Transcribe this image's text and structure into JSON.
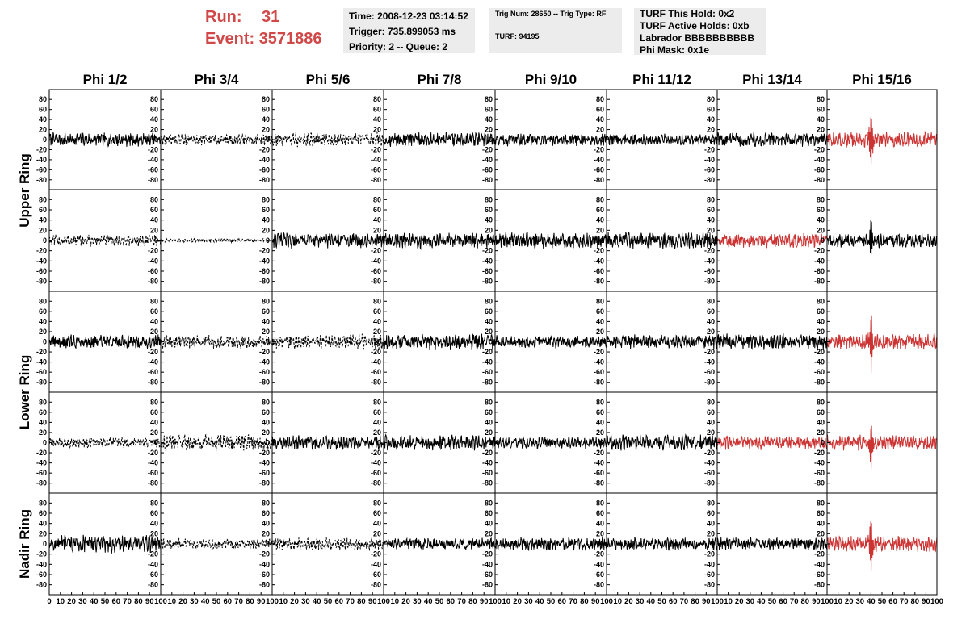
{
  "header": {
    "run_label": "Run:",
    "run_value": "31",
    "event_label": "Event:",
    "event_value": "3571886",
    "time_panel": {
      "time": "Time: 2008-12-23 03:14:52",
      "trigger": "Trigger: 735.899053 ms",
      "priority": "Priority: 2 -- Queue: 2"
    },
    "trig_panel": {
      "trig": "Trig Num: 28650 -- Trig Type: RF",
      "turf": "TURF: 94195"
    },
    "turf_panel": {
      "this_hold": "TURF This Hold: 0x2",
      "active_holds": "TURF Active Holds: 0xb",
      "labrador": "Labrador BBBBBBBBBB",
      "phi_mask": "Phi Mask: 0x1e"
    }
  },
  "chart_data": {
    "type": "line",
    "grid": false,
    "columns": [
      "Phi 1/2",
      "Phi 3/4",
      "Phi 5/6",
      "Phi 7/8",
      "Phi 9/10",
      "Phi 11/12",
      "Phi 13/14",
      "Phi 15/16"
    ],
    "row_groups": [
      {
        "label": "Upper Ring",
        "rows": [
          0,
          1
        ]
      },
      {
        "label": "Lower Ring",
        "rows": [
          2,
          3
        ]
      },
      {
        "label": "Nadir Ring",
        "rows": [
          4
        ]
      }
    ],
    "xlim": [
      0,
      100
    ],
    "ylim": [
      -90,
      90
    ],
    "x_ticks_first": [
      "0",
      "10",
      "20",
      "30",
      "40",
      "50",
      "60",
      "70",
      "80",
      "90",
      "100"
    ],
    "x_ticks_other": [
      "10",
      "20",
      "30",
      "40",
      "50",
      "60",
      "70",
      "80",
      "90",
      "100"
    ],
    "y_ticks": [
      "80",
      "60",
      "40",
      "20",
      "0",
      "-20",
      "-40",
      "-60",
      "-80"
    ],
    "colors": {
      "normal": "#000000",
      "triggered": "#cc3333",
      "header_red": "#d04848"
    },
    "waveform_samples": 260,
    "cells": [
      [
        {
          "amp": 11,
          "style": "solid",
          "color": "black"
        },
        {
          "amp": 9,
          "style": "dashed",
          "color": "black"
        },
        {
          "amp": 11,
          "style": "dashed",
          "color": "black"
        },
        {
          "amp": 11,
          "style": "solid",
          "color": "black"
        },
        {
          "amp": 10,
          "style": "solid",
          "color": "black"
        },
        {
          "amp": 9,
          "style": "solid",
          "color": "black"
        },
        {
          "amp": 11,
          "style": "solid",
          "color": "black"
        },
        {
          "amp": 12,
          "style": "solid",
          "color": "red",
          "spike": 40,
          "spike_amp": 74
        }
      ],
      [
        {
          "amp": 9,
          "style": "dashed",
          "color": "black"
        },
        {
          "amp": 3,
          "style": "dashed",
          "color": "black"
        },
        {
          "amp": 12,
          "style": "solid",
          "color": "black"
        },
        {
          "amp": 12,
          "style": "solid",
          "color": "black"
        },
        {
          "amp": 12,
          "style": "solid",
          "color": "black"
        },
        {
          "amp": 13,
          "style": "solid",
          "color": "black"
        },
        {
          "amp": 11,
          "style": "solid",
          "color": "red"
        },
        {
          "amp": 11,
          "style": "solid",
          "color": "black",
          "spike": 40,
          "spike_amp": 52
        }
      ],
      [
        {
          "amp": 11,
          "style": "solid",
          "color": "black"
        },
        {
          "amp": 10,
          "style": "dashed",
          "color": "black"
        },
        {
          "amp": 12,
          "style": "dashed",
          "color": "black"
        },
        {
          "amp": 13,
          "style": "solid",
          "color": "black"
        },
        {
          "amp": 10,
          "style": "solid",
          "color": "black"
        },
        {
          "amp": 11,
          "style": "solid",
          "color": "black"
        },
        {
          "amp": 12,
          "style": "solid",
          "color": "black"
        },
        {
          "amp": 12,
          "style": "solid",
          "color": "red",
          "spike": 40,
          "spike_amp": 76
        }
      ],
      [
        {
          "amp": 8,
          "style": "dashed",
          "color": "black"
        },
        {
          "amp": 13,
          "style": "dashed",
          "color": "black"
        },
        {
          "amp": 11,
          "style": "solid",
          "color": "black"
        },
        {
          "amp": 12,
          "style": "solid",
          "color": "black"
        },
        {
          "amp": 9,
          "style": "solid",
          "color": "black"
        },
        {
          "amp": 12,
          "style": "solid",
          "color": "black"
        },
        {
          "amp": 11,
          "style": "solid",
          "color": "red"
        },
        {
          "amp": 12,
          "style": "solid",
          "color": "red",
          "spike": 40,
          "spike_amp": 70
        }
      ],
      [
        {
          "amp": 14,
          "style": "solid",
          "color": "black"
        },
        {
          "amp": 8,
          "style": "dashed",
          "color": "black"
        },
        {
          "amp": 10,
          "style": "dashed",
          "color": "black"
        },
        {
          "amp": 9,
          "style": "solid",
          "color": "black"
        },
        {
          "amp": 10,
          "style": "solid",
          "color": "black"
        },
        {
          "amp": 10,
          "style": "solid",
          "color": "black"
        },
        {
          "amp": 10,
          "style": "solid",
          "color": "black"
        },
        {
          "amp": 12,
          "style": "solid",
          "color": "red",
          "spike": 40,
          "spike_amp": 80
        }
      ]
    ]
  }
}
